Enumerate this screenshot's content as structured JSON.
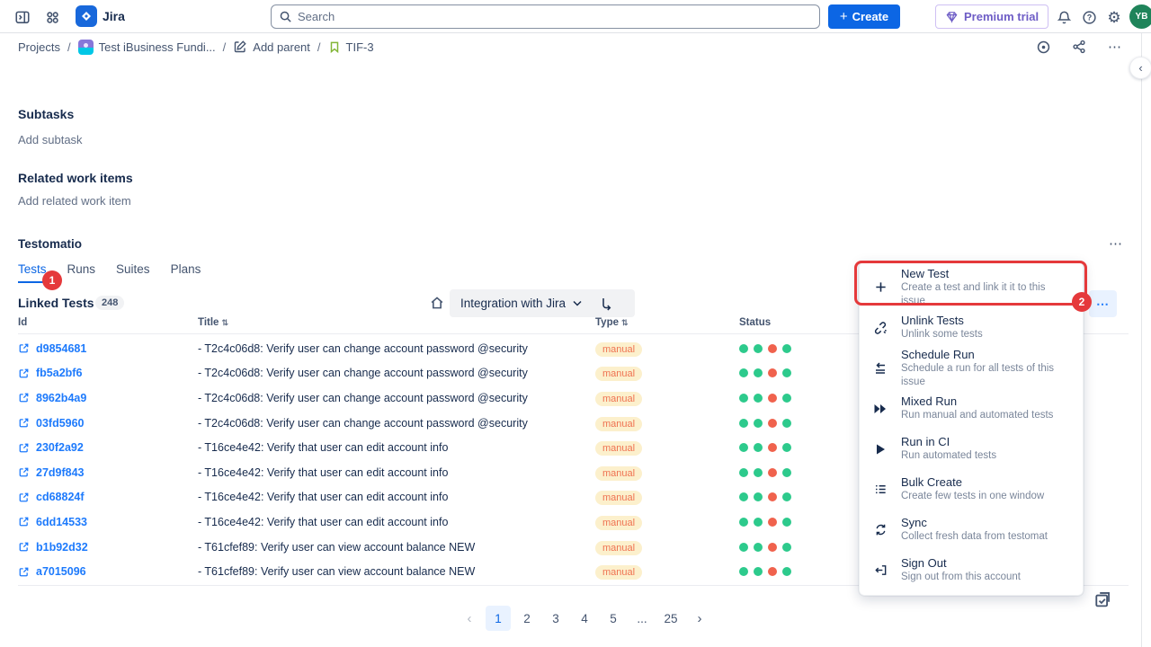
{
  "topbar": {
    "app_name": "Jira",
    "search_placeholder": "Search",
    "create_label": "Create",
    "premium_label": "Premium trial",
    "avatar_initials": "YB"
  },
  "breadcrumb": {
    "projects": "Projects",
    "project": "Test iBusiness Fundi...",
    "add_parent": "Add parent",
    "issue_key": "TIF-3",
    "separator": "/"
  },
  "sections": {
    "subtasks_title": "Subtasks",
    "add_subtask": "Add subtask",
    "related_title": "Related work items",
    "add_related": "Add related work item"
  },
  "testomatio": {
    "title": "Testomatio",
    "tabs": [
      "Tests",
      "Runs",
      "Suites",
      "Plans"
    ],
    "active_tab": "Tests",
    "badge_tests": "1",
    "badge_menu": "2",
    "linked_tests_label": "Linked Tests",
    "linked_tests_count": "248",
    "filter_label": "Integration with Jira",
    "table": {
      "headers": {
        "id": "Id",
        "title": "Title",
        "type": "Type",
        "status": "Status"
      },
      "status_pattern": [
        "pass",
        "pass",
        "fail",
        "pass"
      ],
      "rows": [
        {
          "id": "d9854681",
          "title": "- T2c4c06d8: Verify user can change account password @security",
          "type": "manual"
        },
        {
          "id": "fb5a2bf6",
          "title": "- T2c4c06d8: Verify user can change account password @security",
          "type": "manual"
        },
        {
          "id": "8962b4a9",
          "title": "- T2c4c06d8: Verify user can change account password @security",
          "type": "manual"
        },
        {
          "id": "03fd5960",
          "title": "- T2c4c06d8: Verify user can change account password @security",
          "type": "manual"
        },
        {
          "id": "230f2a92",
          "title": "- T16ce4e42: Verify that user can edit account info",
          "type": "manual"
        },
        {
          "id": "27d9f843",
          "title": "- T16ce4e42: Verify that user can edit account info",
          "type": "manual"
        },
        {
          "id": "cd68824f",
          "title": "- T16ce4e42: Verify that user can edit account info",
          "type": "manual"
        },
        {
          "id": "6dd14533",
          "title": "- T16ce4e42: Verify that user can edit account info",
          "type": "manual"
        },
        {
          "id": "b1b92d32",
          "title": "- T61cfef89: Verify user can view account balance NEW",
          "type": "manual"
        },
        {
          "id": "a7015096",
          "title": "- T61cfef89: Verify user can view account balance NEW",
          "type": "manual"
        }
      ]
    },
    "pagination": {
      "pages": [
        "1",
        "2",
        "3",
        "4",
        "5",
        "...",
        "25"
      ],
      "active_page": "1"
    },
    "menu": {
      "items": [
        {
          "label": "New Test",
          "desc": "Create a test and link it it to this issue"
        },
        {
          "label": "Unlink Tests",
          "desc": "Unlink some tests"
        },
        {
          "label": "Schedule Run",
          "desc": "Schedule a run for all tests of this issue"
        },
        {
          "label": "Mixed Run",
          "desc": "Run manual and automated tests"
        },
        {
          "label": "Run in CI",
          "desc": "Run automated tests"
        },
        {
          "label": "Bulk Create",
          "desc": "Create few tests in one window"
        },
        {
          "label": "Sync",
          "desc": "Collect fresh data from testomat"
        },
        {
          "label": "Sign Out",
          "desc": "Sign out from this account"
        }
      ]
    }
  },
  "colors": {
    "accent_blue": "#0c66e4",
    "link_blue": "#1d7afc",
    "highlight_red": "#e5393b",
    "status_pass": "#2dca8c",
    "status_fail": "#f0624d",
    "manual_badge_bg": "#fcf0cc",
    "manual_badge_text": "#ef7251",
    "premium_purple": "#6e5dc6",
    "avatar_green": "#1f845a"
  }
}
